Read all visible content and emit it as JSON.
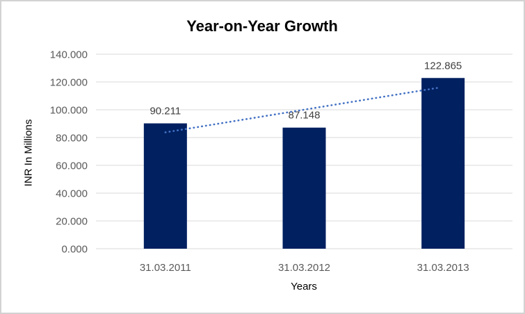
{
  "window": {
    "background": "#ffffff",
    "border_color": "#d2d2d2"
  },
  "chart_data": {
    "type": "bar",
    "title": "Year-on-Year Growth",
    "xlabel": "Years",
    "ylabel": "INR In Millions",
    "categories": [
      "31.03.2011",
      "31.03.2012",
      "31.03.2013"
    ],
    "values": [
      90.211,
      87.148,
      122.865
    ],
    "data_labels": [
      "90.211",
      "87.148",
      "122.865"
    ],
    "ylim": [
      0,
      140
    ],
    "ytick_step": 20,
    "ytick_labels": [
      "0.000",
      "20.000",
      "40.000",
      "60.000",
      "80.000",
      "100.000",
      "120.000",
      "140.000"
    ],
    "grid": true,
    "legend": "none",
    "trendline": {
      "type": "linear",
      "style": "dotted",
      "color": "#4472c4"
    },
    "colors": {
      "bar": "#002060",
      "gridline": "#d9d9d9",
      "axis_text": "#595959",
      "title": "#595959",
      "data_label": "#404040"
    }
  }
}
